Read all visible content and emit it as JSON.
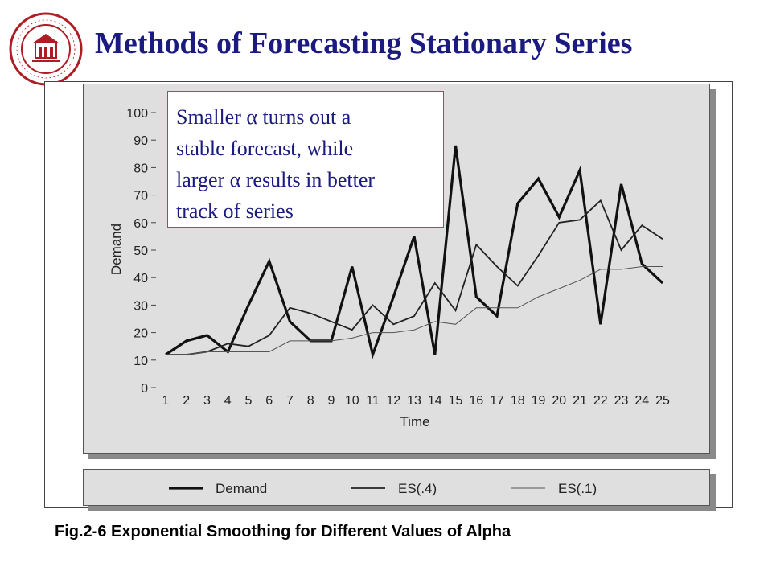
{
  "slide": {
    "title": "Methods of Forecasting Stationary Series",
    "caption": "Fig.2-6  Exponential Smoothing for Different Values of Alpha",
    "logo_icon": "university-seal-icon"
  },
  "annotation": {
    "lines": [
      "Smaller  α  turns out a",
      "stable forecast,  while",
      "larger  α  results in better",
      "track of series"
    ]
  },
  "colors": {
    "title": "#1a1a80",
    "annotation_text": "#1a1a80",
    "annotation_border": "#d0306a",
    "panel": "#dfdfdf",
    "shadow": "#8a8a8a"
  },
  "chart_data": {
    "type": "line",
    "xlabel": "Time",
    "ylabel": "Demand",
    "x": [
      1,
      2,
      3,
      4,
      5,
      6,
      7,
      8,
      9,
      10,
      11,
      12,
      13,
      14,
      15,
      16,
      17,
      18,
      19,
      20,
      21,
      22,
      23,
      24,
      25
    ],
    "y_ticks": [
      0,
      10,
      20,
      30,
      40,
      50,
      60,
      70,
      80,
      90,
      100
    ],
    "ylim": [
      0,
      100
    ],
    "xlim": [
      1,
      25
    ],
    "grid": false,
    "legend_position": "bottom",
    "series": [
      {
        "name": "Demand",
        "values": [
          12,
          17,
          19,
          13,
          30,
          46,
          24,
          17,
          17,
          44,
          12,
          33,
          55,
          12,
          88,
          33,
          26,
          67,
          76,
          62,
          79,
          23,
          74,
          45,
          38
        ]
      },
      {
        "name": "ES(.4)",
        "values": [
          12,
          12,
          13,
          16,
          15,
          19,
          29,
          27,
          24,
          21,
          30,
          23,
          26,
          38,
          28,
          52,
          44,
          37,
          48,
          60,
          61,
          68,
          50,
          59,
          54
        ]
      },
      {
        "name": "ES(.1)",
        "values": [
          12,
          12,
          13,
          13,
          13,
          13,
          17,
          17,
          17,
          18,
          20,
          20,
          21,
          24,
          23,
          29,
          29,
          29,
          33,
          36,
          39,
          43,
          43,
          44,
          44
        ]
      }
    ]
  }
}
